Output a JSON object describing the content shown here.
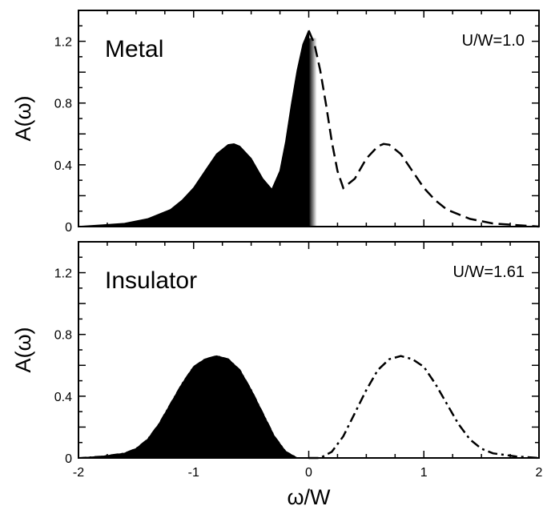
{
  "chart_data": [
    {
      "type": "area",
      "panel_label": "Metal",
      "parameter_label": "U/W=1.0",
      "ylabel": "A(ω)",
      "xlabel": "",
      "xlim": [
        -2,
        2
      ],
      "ylim": [
        0,
        1.4
      ],
      "x_ticks": [
        "-2",
        "-1",
        "0",
        "1",
        "2"
      ],
      "x_tick_values": [
        -2,
        -1,
        0,
        1,
        2
      ],
      "x_tick_labels_shown": false,
      "y_ticks": [
        "0",
        "0.4",
        "0.8",
        "1.2"
      ],
      "y_tick_values": [
        0,
        0.4,
        0.8,
        1.2
      ],
      "grid": false,
      "series": [
        {
          "style": "filled",
          "x": [
            -2.0,
            -1.8,
            -1.6,
            -1.4,
            -1.2,
            -1.1,
            -1.0,
            -0.9,
            -0.8,
            -0.7,
            -0.65,
            -0.6,
            -0.5,
            -0.4,
            -0.32,
            -0.25,
            -0.2,
            -0.15,
            -0.1,
            -0.05,
            0.0
          ],
          "y": [
            0.0,
            0.01,
            0.02,
            0.05,
            0.11,
            0.17,
            0.25,
            0.36,
            0.47,
            0.53,
            0.535,
            0.52,
            0.44,
            0.31,
            0.24,
            0.36,
            0.55,
            0.79,
            1.01,
            1.18,
            1.27
          ]
        },
        {
          "style": "dashed",
          "x": [
            0.0,
            0.05,
            0.1,
            0.15,
            0.2,
            0.25,
            0.3,
            0.4,
            0.5,
            0.6,
            0.65,
            0.7,
            0.8,
            0.9,
            1.0,
            1.1,
            1.2,
            1.4,
            1.6,
            1.8,
            2.0
          ],
          "y": [
            1.27,
            1.18,
            1.01,
            0.79,
            0.55,
            0.36,
            0.25,
            0.31,
            0.44,
            0.52,
            0.535,
            0.53,
            0.47,
            0.36,
            0.25,
            0.17,
            0.11,
            0.05,
            0.02,
            0.01,
            0.0
          ]
        }
      ]
    },
    {
      "type": "area",
      "panel_label": "Insulator",
      "parameter_label": "U/W=1.61",
      "ylabel": "A(ω)",
      "xlabel": "ω/W",
      "xlim": [
        -2,
        2
      ],
      "ylim": [
        0,
        1.4
      ],
      "x_ticks": [
        "-2",
        "-1",
        "0",
        "1",
        "2"
      ],
      "x_tick_values": [
        -2,
        -1,
        0,
        1,
        2
      ],
      "x_tick_labels_shown": true,
      "y_ticks": [
        "0",
        "0.4",
        "0.8",
        "1.2"
      ],
      "y_tick_values": [
        0,
        0.4,
        0.8,
        1.2
      ],
      "grid": false,
      "series": [
        {
          "style": "filled",
          "x": [
            -2.0,
            -1.8,
            -1.6,
            -1.5,
            -1.4,
            -1.3,
            -1.2,
            -1.1,
            -1.0,
            -0.9,
            -0.8,
            -0.7,
            -0.6,
            -0.5,
            -0.4,
            -0.3,
            -0.2,
            -0.1,
            0.0
          ],
          "y": [
            0.0,
            0.01,
            0.03,
            0.06,
            0.12,
            0.22,
            0.35,
            0.48,
            0.59,
            0.64,
            0.66,
            0.64,
            0.57,
            0.44,
            0.29,
            0.14,
            0.04,
            0.0,
            0.0
          ],
          "outline": "dash-dot"
        },
        {
          "style": "dash-dot",
          "x": [
            0.0,
            0.1,
            0.2,
            0.3,
            0.4,
            0.5,
            0.6,
            0.7,
            0.8,
            0.9,
            1.0,
            1.1,
            1.2,
            1.3,
            1.4,
            1.5,
            1.6,
            1.8,
            2.0
          ],
          "y": [
            0.0,
            0.0,
            0.04,
            0.14,
            0.29,
            0.44,
            0.57,
            0.64,
            0.66,
            0.64,
            0.59,
            0.48,
            0.35,
            0.22,
            0.12,
            0.06,
            0.03,
            0.01,
            0.0
          ]
        }
      ]
    }
  ]
}
